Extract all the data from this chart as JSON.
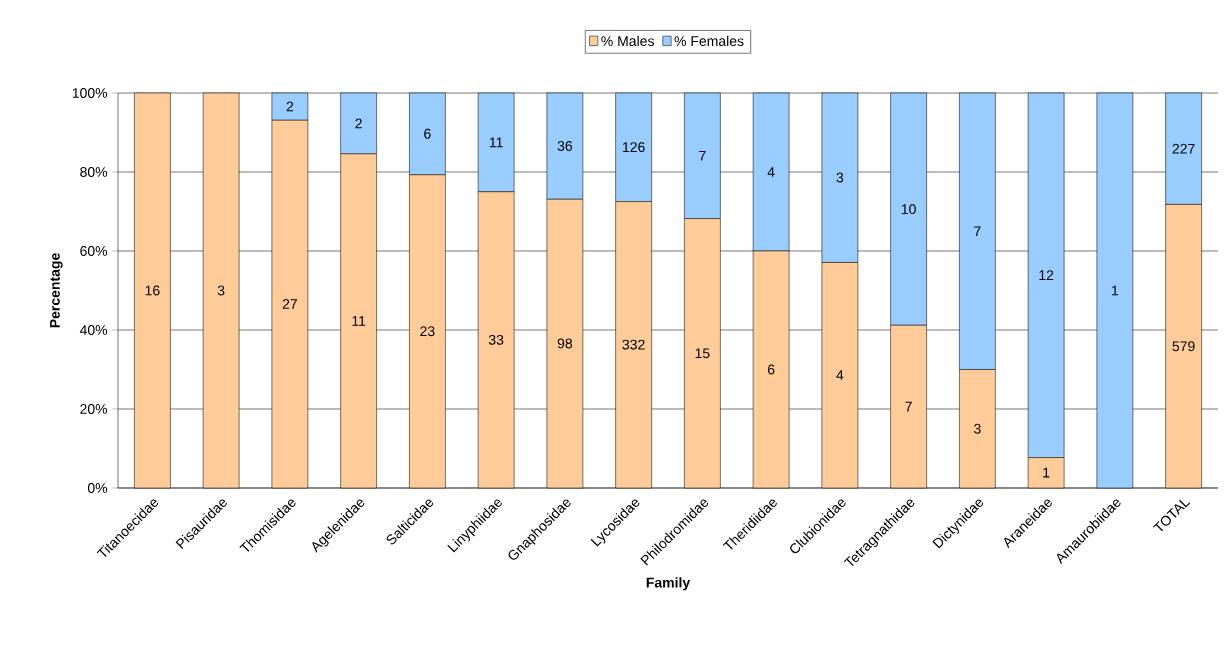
{
  "chart_data": {
    "type": "bar",
    "stacked": true,
    "xlabel": "Family",
    "ylabel": "Percentage",
    "categories": [
      "Titanoecidae",
      "Pisauridae",
      "Thomisidae",
      "Agelenidae",
      "Salticidae",
      "Linyphiidae",
      "Gnaphosidae",
      "Lycosidae",
      "Philodromidae",
      "Theridiidae",
      "Clubionidae",
      "Tetragnathidae",
      "Dictynidae",
      "Araneidae",
      "Amaurobiidae",
      "TOTAL"
    ],
    "series": [
      {
        "name": "% Males",
        "color": "#ffcc99",
        "values": [
          100,
          100,
          93.1,
          84.6,
          79.3,
          75.0,
          73.1,
          72.5,
          68.2,
          60.0,
          57.1,
          41.2,
          30.0,
          7.7,
          0,
          71.8
        ]
      },
      {
        "name": "% Females",
        "color": "#99ccff",
        "values": [
          0,
          0,
          6.9,
          15.4,
          20.7,
          25.0,
          26.9,
          27.5,
          31.8,
          40.0,
          42.9,
          58.8,
          70.0,
          92.3,
          100,
          28.2
        ]
      }
    ],
    "annotations": [
      {
        "text": "16",
        "x": "Titanoecidae",
        "y": 50
      },
      {
        "text": "3",
        "x": "Pisauridae",
        "y": 50
      },
      {
        "text": "27",
        "x": "Thomisidae",
        "y": 46.6
      },
      {
        "text": "11",
        "x": "Agelenidae",
        "y": 42.3
      },
      {
        "text": "23",
        "x": "Salticidae",
        "y": 39.7
      },
      {
        "text": "33",
        "x": "Linyphiidae",
        "y": 37.5
      },
      {
        "text": "98",
        "x": "Gnaphosidae",
        "y": 36.6
      },
      {
        "text": "332",
        "x": "Lycosidae",
        "y": 36.3
      },
      {
        "text": "15",
        "x": "Philodromidae",
        "y": 34.1
      },
      {
        "text": "6",
        "x": "Theridiidae",
        "y": 30
      },
      {
        "text": "4",
        "x": "Clubionidae",
        "y": 28.6
      },
      {
        "text": "7",
        "x": "Tetragnathidae",
        "y": 20.6
      },
      {
        "text": "3",
        "x": "Dictynidae",
        "y": 15
      },
      {
        "text": "1",
        "x": "Araneidae",
        "y": 3.9
      },
      {
        "text": "579",
        "x": "TOTAL",
        "y": 35.9
      },
      {
        "text": "2",
        "x": "Thomisidae",
        "y": 96.6
      },
      {
        "text": "2",
        "x": "Agelenidae",
        "y": 92.3
      },
      {
        "text": "6",
        "x": "Salticidae",
        "y": 89.7
      },
      {
        "text": "11",
        "x": "Linyphiidae",
        "y": 87.5
      },
      {
        "text": "36",
        "x": "Gnaphosidae",
        "y": 86.6
      },
      {
        "text": "126",
        "x": "Lycosidae",
        "y": 86.3
      },
      {
        "text": "7",
        "x": "Philodromidae",
        "y": 84.1
      },
      {
        "text": "4",
        "x": "Theridiidae",
        "y": 80
      },
      {
        "text": "3",
        "x": "Clubionidae",
        "y": 78.6
      },
      {
        "text": "10",
        "x": "Tetragnathidae",
        "y": 70.6
      },
      {
        "text": "7",
        "x": "Dictynidae",
        "y": 65
      },
      {
        "text": "12",
        "x": "Araneidae",
        "y": 53.9
      },
      {
        "text": "1",
        "x": "Amaurobiidae",
        "y": 50
      },
      {
        "text": "227",
        "x": "TOTAL",
        "y": 85.9
      }
    ],
    "ylim": [
      0,
      100
    ],
    "yticks": [
      {
        "value": 0,
        "label": "0%"
      },
      {
        "value": 20,
        "label": "20%"
      },
      {
        "value": 40,
        "label": "40%"
      },
      {
        "value": 60,
        "label": "60%"
      },
      {
        "value": 80,
        "label": "80%"
      },
      {
        "value": 100,
        "label": "100%"
      }
    ],
    "grid": "y",
    "legend": "top"
  }
}
